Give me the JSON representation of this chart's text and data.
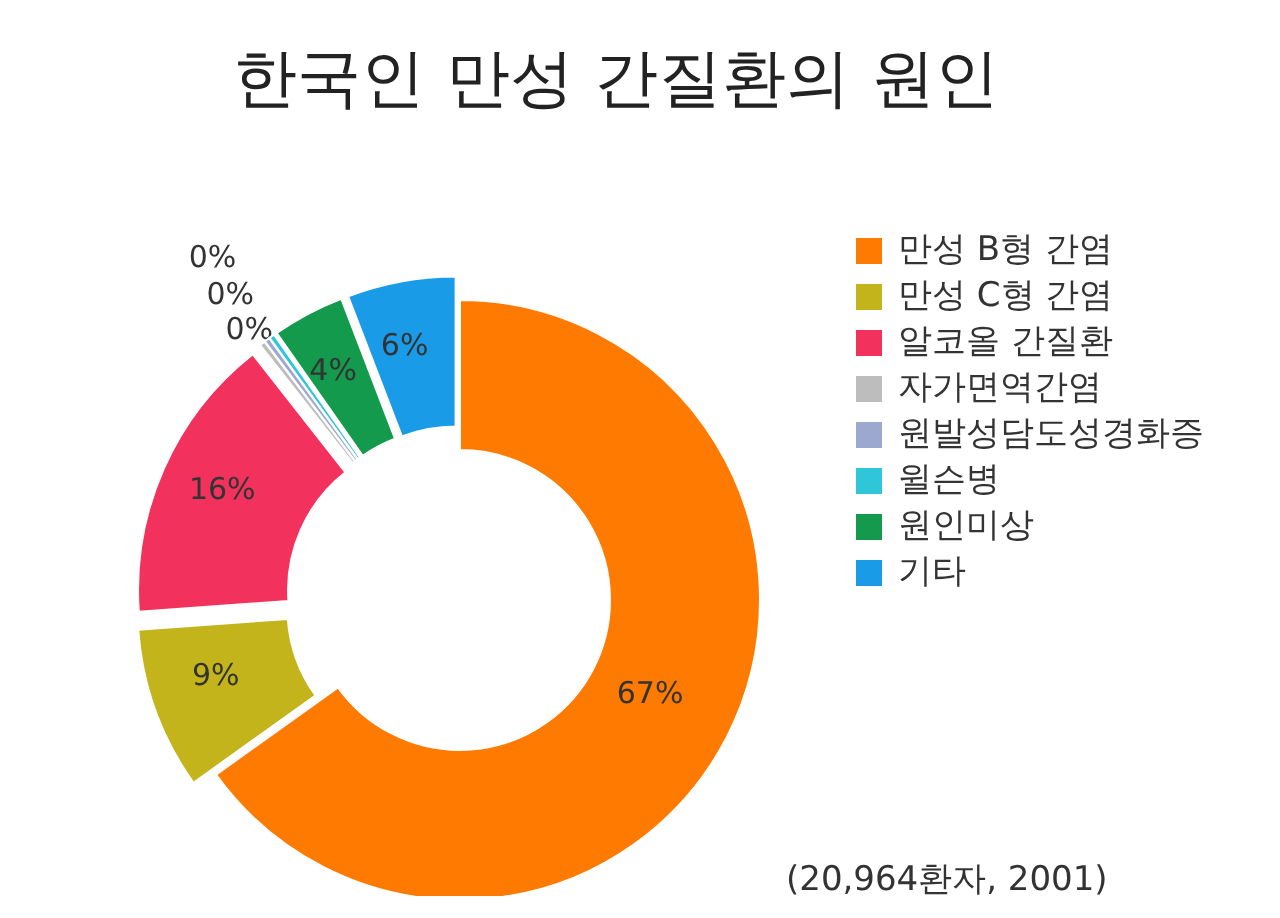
{
  "chart_data": {
    "type": "donut",
    "title": "한국인 만성 간질환의 원인",
    "categories": [
      "만성 B형 간염",
      "만성 C형 간염",
      "알코올 간질환",
      "자가면역간염",
      "원발성담도성경화증",
      "윌슨병",
      "원인미상",
      "기타"
    ],
    "values": [
      67,
      9,
      16,
      0.3,
      0.3,
      0.3,
      4,
      6
    ],
    "value_labels": [
      "67%",
      "9%",
      "16%",
      "0%",
      "0%",
      "0%",
      "4%",
      "6%"
    ],
    "colors": [
      "#ff7a00",
      "#c4b41c",
      "#f2325c",
      "#bdbdbd",
      "#9ca8cf",
      "#2ec6d8",
      "#139a4c",
      "#1a9be8"
    ],
    "legend": "right",
    "annotations": [
      "(20,964환자, 2001)"
    ]
  }
}
